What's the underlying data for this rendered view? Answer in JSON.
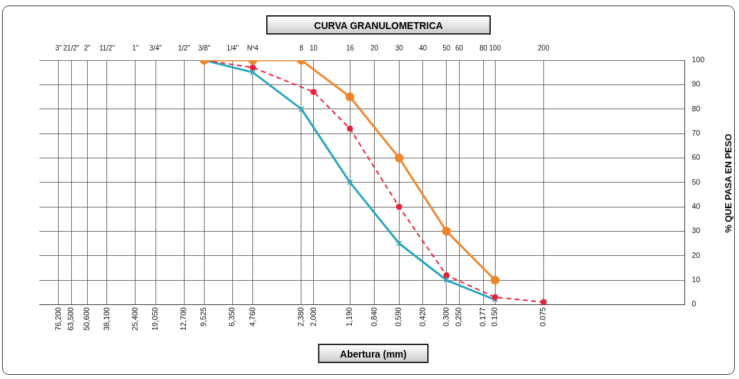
{
  "chart_data": {
    "type": "line",
    "title": "CURVA GRANULOMETRICA",
    "xlabel": "Abertura (mm)",
    "ylabel": "% QUE PASA EN PESO",
    "log": "x",
    "grid": true,
    "legend": false,
    "xlim": [
      100,
      0.01
    ],
    "xticks": [
      {
        "value": 76.2,
        "label": "76,200"
      },
      {
        "value": 63.5,
        "label": "63,500"
      },
      {
        "value": 50.6,
        "label": "50,600"
      },
      {
        "value": 38.1,
        "label": "38,100"
      },
      {
        "value": 25.4,
        "label": "25,400"
      },
      {
        "value": 19.05,
        "label": "19,050"
      },
      {
        "value": 12.7,
        "label": "12,700"
      },
      {
        "value": 9.525,
        "label": "9,525"
      },
      {
        "value": 6.35,
        "label": "6,350"
      },
      {
        "value": 4.76,
        "label": "4,760"
      },
      {
        "value": 2.38,
        "label": "2,380"
      },
      {
        "value": 2.0,
        "label": "2,000"
      },
      {
        "value": 1.19,
        "label": "1,190"
      },
      {
        "value": 0.84,
        "label": "0,840"
      },
      {
        "value": 0.59,
        "label": "0,590"
      },
      {
        "value": 0.42,
        "label": "0,420"
      },
      {
        "value": 0.3,
        "label": "0,300"
      },
      {
        "value": 0.25,
        "label": "0,250"
      },
      {
        "value": 0.177,
        "label": "0.177"
      },
      {
        "value": 0.15,
        "label": "0.150"
      },
      {
        "value": 0.075,
        "label": "0.075"
      }
    ],
    "annotations": [
      "3\"",
      "21/2\"",
      "2\"",
      "11/2\"",
      "1\"",
      "3/4\"",
      "1/2\"",
      "3/8\"",
      "1/4\"",
      "Nº4",
      "8",
      "10",
      "16",
      "20",
      "30",
      "40",
      "50",
      "60",
      "80",
      "100",
      "200"
    ],
    "ylim": [
      0,
      100
    ],
    "yticks": [
      0,
      10,
      20,
      30,
      40,
      50,
      60,
      70,
      80,
      90,
      100
    ],
    "series": [
      {
        "color": "#f0862a",
        "marker": "circle",
        "line_style": "solid",
        "x": [
          9.525,
          4.76,
          2.38,
          1.19,
          0.59,
          0.3,
          0.15
        ],
        "values": [
          100,
          100,
          100,
          85,
          60,
          30,
          10
        ]
      },
      {
        "color": "#e8203a",
        "marker": "circle",
        "line_style": "dashed",
        "x": [
          9.525,
          4.76,
          2.0,
          1.19,
          0.59,
          0.3,
          0.15,
          0.075
        ],
        "values": [
          100,
          97,
          87,
          72,
          40,
          12,
          3,
          1
        ]
      },
      {
        "color": "#25a5c0",
        "marker": "cross",
        "line_style": "solid",
        "x": [
          9.525,
          4.76,
          2.38,
          1.19,
          0.59,
          0.3,
          0.15
        ],
        "values": [
          100,
          95,
          80,
          50,
          25,
          10,
          2
        ]
      }
    ]
  }
}
